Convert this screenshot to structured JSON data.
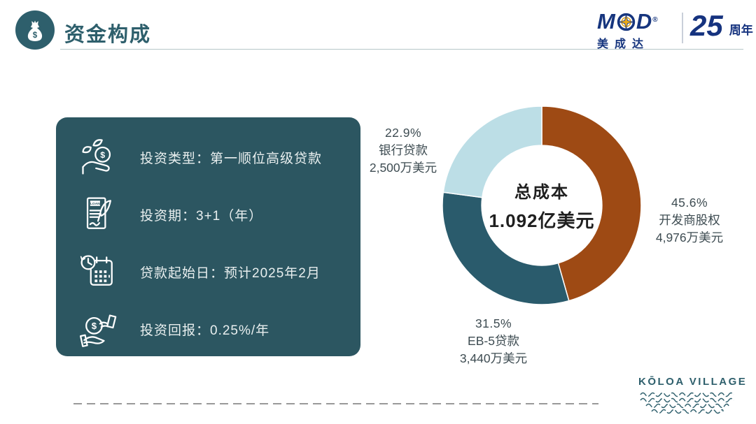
{
  "header": {
    "title": "资金构成"
  },
  "brand": {
    "mcd_m": "M",
    "mcd_d": "D",
    "registered": "®",
    "mcd_name_cn": "美成达",
    "anniversary_number": "25",
    "anniversary_suffix": "周年"
  },
  "info_panel": {
    "items": [
      {
        "icon": "hand-coin-sprout-icon",
        "label": "投资类型：第一顺位高级贷款"
      },
      {
        "icon": "loan-contract-icon",
        "label": "投资期：3+1（年）"
      },
      {
        "icon": "calendar-clock-icon",
        "label": "贷款起始日：预计2025年2月"
      },
      {
        "icon": "hand-return-coin-icon",
        "label": "投资回报：0.25%/年"
      }
    ]
  },
  "chart_data": {
    "type": "pie",
    "variant": "donut",
    "title": "资金构成",
    "start_angle_deg": 0,
    "direction": "clockwise",
    "inner_radius_ratio": 0.605,
    "legend": "none",
    "center_label": {
      "line1": "总成本",
      "line2": "1.092亿美元"
    },
    "slices": [
      {
        "name": "开发商股权",
        "value_pct": 45.6,
        "pct_label": "45.6%",
        "amount": "4,976万美元",
        "color": "#9E4A14",
        "label_position": "right"
      },
      {
        "name": "EB-5贷款",
        "value_pct": 31.5,
        "pct_label": "31.5%",
        "amount": "3,440万美元",
        "color": "#2A5B6C",
        "label_position": "bottom"
      },
      {
        "name": "银行贷款",
        "value_pct": 22.9,
        "pct_label": "22.9%",
        "amount": "2,500万美元",
        "color": "#BCDEE6",
        "label_position": "top-left"
      }
    ]
  },
  "icons": {
    "dollar_glyph": "$",
    "loan_glyph": "LOAN"
  },
  "footer": {
    "project_brand": "KŌLOA VILLAGE"
  },
  "colors": {
    "panel_bg": "#2C5661",
    "accent_teal": "#2E5F6C",
    "logo_blue": "#16357E",
    "logo_gold": "#E8A817",
    "label_text": "#3E4C52",
    "dash_line": "#999999",
    "header_rule": "#B7C6C9"
  }
}
